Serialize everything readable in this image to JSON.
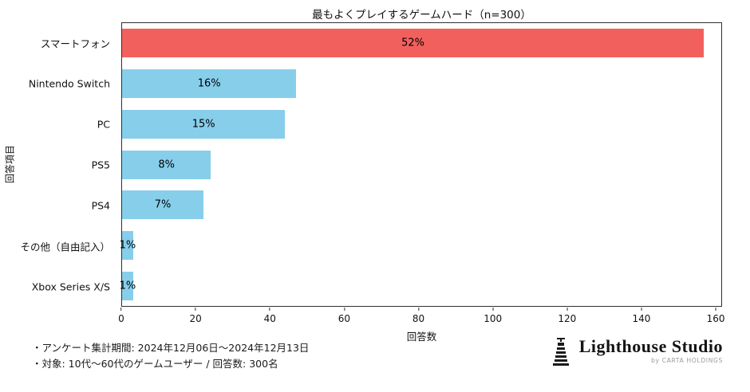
{
  "chart_data": {
    "type": "bar",
    "orientation": "horizontal",
    "title": "最もよくプレイするゲームハード（n=300）",
    "xlabel": "回答数",
    "ylabel": "回答項目",
    "xlim": [
      0,
      161.7
    ],
    "xticks": [
      0,
      20,
      40,
      60,
      80,
      100,
      120,
      140,
      160
    ],
    "grid": false,
    "legend": "none",
    "categories": [
      "スマートフォン",
      "Nintendo Switch",
      "PC",
      "PS5",
      "PS4",
      "その他（自由記入）",
      "Xbox Series X/S"
    ],
    "values": [
      157,
      47,
      44,
      24,
      22,
      3,
      3
    ],
    "bar_labels": [
      "52%",
      "16%",
      "15%",
      "8%",
      "7%",
      "1%",
      "1%"
    ],
    "bar_colors": [
      "#f2605d",
      "#87ceeb",
      "#87ceeb",
      "#87ceeb",
      "#87ceeb",
      "#87ceeb",
      "#87ceeb"
    ],
    "axis_color": "#2f2f2f"
  },
  "footer": {
    "note1": "・アンケート集計期間: 2024年12月06日〜2024年12月13日",
    "note2": "・対象: 10代〜60代のゲームユーザー / 回答数: 300名"
  },
  "logo": {
    "name": "Lighthouse Studio",
    "sub": "by CARTA HOLDINGS"
  }
}
